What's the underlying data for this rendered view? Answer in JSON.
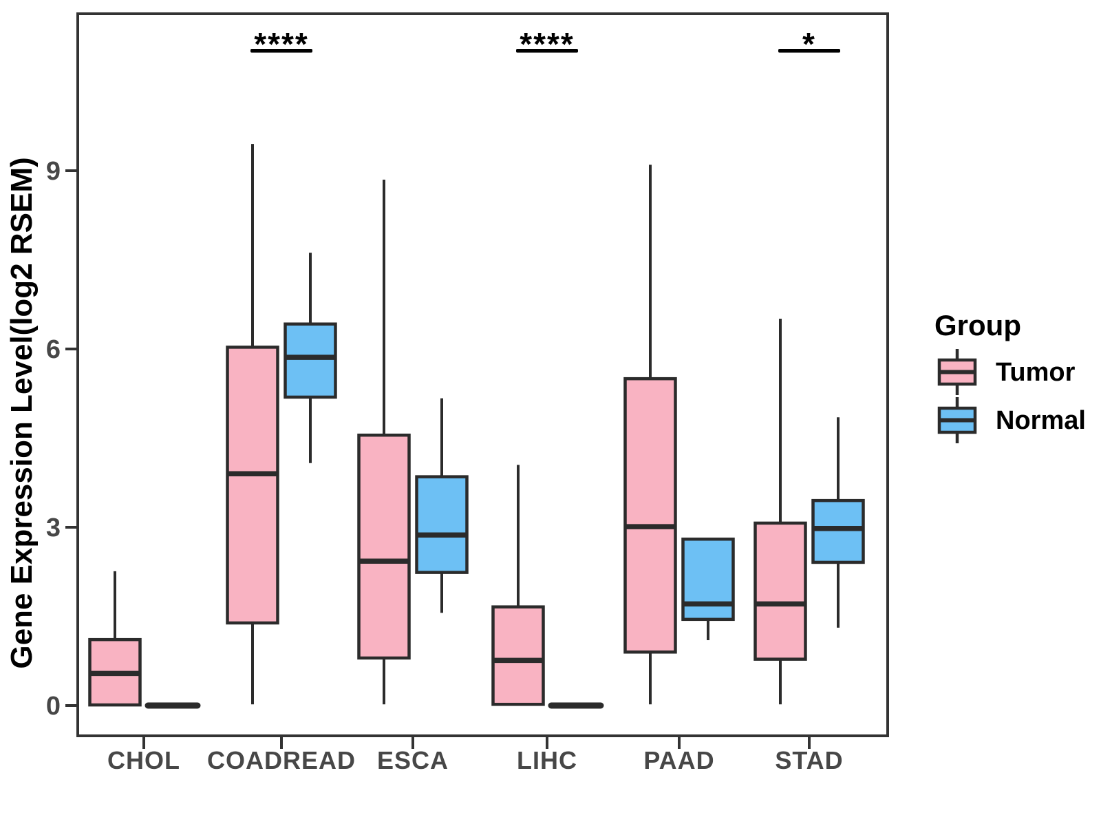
{
  "chart_data": {
    "type": "boxplot",
    "title": "",
    "xlabel": "",
    "ylabel": "Gene Expression Level(log2 RSEM)",
    "yticks": [
      0,
      3,
      6,
      9
    ],
    "ylim": [
      -0.5,
      11.6
    ],
    "grid": "off",
    "categories": [
      "CHOL",
      "COADREAD",
      "ESCA",
      "LIHC",
      "PAAD",
      "STAD"
    ],
    "legend": {
      "title": "Group",
      "position": "right",
      "entries": [
        {
          "label": "Tumor",
          "color": "#F9B3C2"
        },
        {
          "label": "Normal",
          "color": "#6DC0F4"
        }
      ]
    },
    "colors": {
      "tumor_fill": "#F9B3C2",
      "normal_fill": "#6DC0F4",
      "box_stroke": "#2B2B2B",
      "axis_stroke": "#333333",
      "tick_label": "#474747"
    },
    "series": [
      {
        "name": "Tumor",
        "color": "#F9B3C2",
        "boxes": [
          {
            "category": "CHOL",
            "min": 0.01,
            "q1": 0.01,
            "median": 0.54,
            "q3": 1.11,
            "max": 2.26
          },
          {
            "category": "COADREAD",
            "min": 0.02,
            "q1": 1.39,
            "median": 3.9,
            "q3": 6.03,
            "max": 9.45
          },
          {
            "category": "ESCA",
            "min": 0.02,
            "q1": 0.8,
            "median": 2.43,
            "q3": 4.55,
            "max": 8.85
          },
          {
            "category": "LIHC",
            "min": 0.02,
            "q1": 0.02,
            "median": 0.76,
            "q3": 1.66,
            "max": 4.05
          },
          {
            "category": "PAAD",
            "min": 0.02,
            "q1": 0.9,
            "median": 3.01,
            "q3": 5.5,
            "max": 9.1
          },
          {
            "category": "STAD",
            "min": 0.02,
            "q1": 0.78,
            "median": 1.71,
            "q3": 3.07,
            "max": 6.51
          }
        ]
      },
      {
        "name": "Normal",
        "color": "#6DC0F4",
        "boxes": [
          {
            "category": "CHOL",
            "min": 0.0,
            "q1": 0.0,
            "median": 0.0,
            "q3": 0.0,
            "max": 0.0
          },
          {
            "category": "COADREAD",
            "min": 4.08,
            "q1": 5.19,
            "median": 5.86,
            "q3": 6.42,
            "max": 7.62
          },
          {
            "category": "ESCA",
            "min": 1.56,
            "q1": 2.24,
            "median": 2.87,
            "q3": 3.85,
            "max": 5.17
          },
          {
            "category": "LIHC",
            "min": 0.0,
            "q1": 0.0,
            "median": 0.0,
            "q3": 0.0,
            "max": 0.0
          },
          {
            "category": "PAAD",
            "min": 1.1,
            "q1": 1.45,
            "median": 1.71,
            "q3": 2.8,
            "max": 2.8
          },
          {
            "category": "STAD",
            "min": 1.31,
            "q1": 2.41,
            "median": 2.98,
            "q3": 3.45,
            "max": 4.85
          }
        ]
      }
    ],
    "annotations": [
      {
        "category": "COADREAD",
        "label": "****"
      },
      {
        "category": "LIHC",
        "label": "****"
      },
      {
        "category": "STAD",
        "label": "*"
      }
    ]
  }
}
